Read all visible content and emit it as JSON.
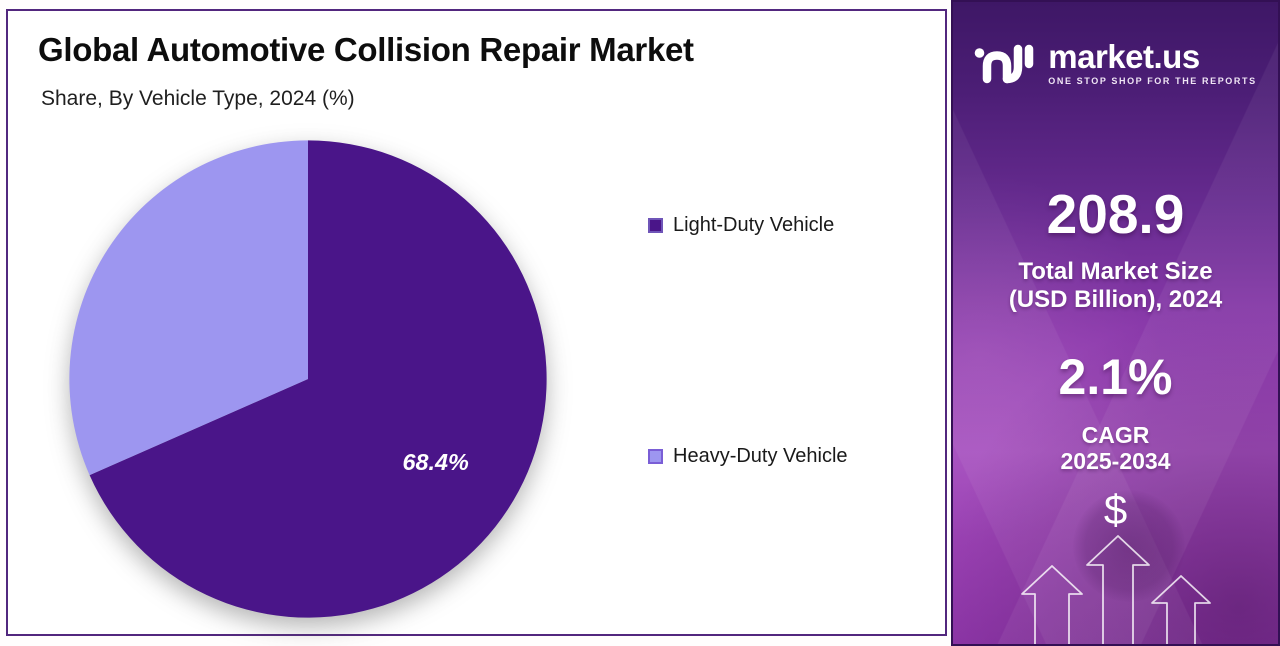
{
  "chart_data": {
    "type": "pie",
    "title": "Global Automotive Collision Repair Market",
    "subtitle": "Share, By Vehicle Type, 2024 (%)",
    "start_angle": 0,
    "direction": "clockwise",
    "legend_position": "right",
    "slices": [
      {
        "label": "Light-Duty Vehicle",
        "value": 68.4,
        "color": "#4a1589",
        "legend_border": "#6f55b8",
        "data_label": "68.4%"
      },
      {
        "label": "Heavy-Duty Vehicle",
        "value": 31.6,
        "color": "#9d96f0",
        "legend_border": "#7a5ed6",
        "data_label": ""
      }
    ],
    "data_label_color": "#ffffff"
  },
  "sidebar": {
    "brand": "market.us",
    "tagline": "ONE STOP SHOP FOR THE REPORTS",
    "stats": [
      {
        "value": "208.9",
        "label": [
          "Total Market Size",
          "(USD Billion), 2024"
        ]
      },
      {
        "value": "2.1%",
        "label": [
          "CAGR",
          "2025-2034"
        ]
      }
    ],
    "currency_symbol": "$"
  },
  "colors": {
    "panel_border": "#52277e",
    "sidebar_border": "#331054"
  }
}
